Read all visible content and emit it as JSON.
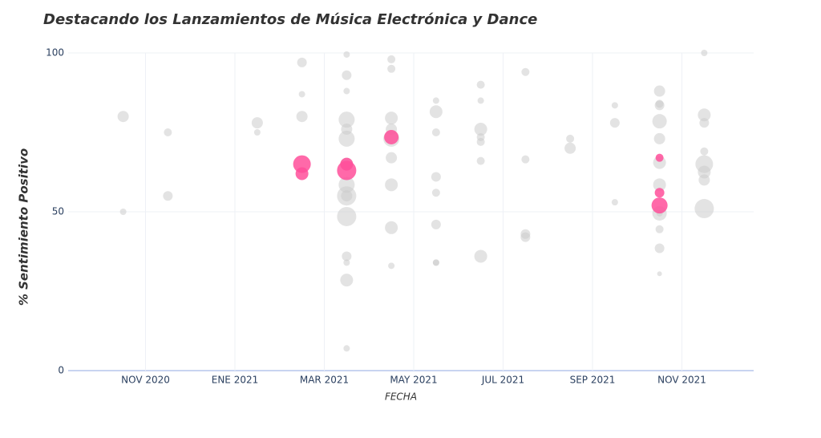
{
  "chart_data": {
    "type": "bubble",
    "title": "Destacando los Lanzamientos de Música Electrónica y Dance",
    "xlabel": "FECHA",
    "ylabel": "% Sentimiento Positivo",
    "xlim": [
      "2020-09",
      "2022-01"
    ],
    "xticks": [
      {
        "value": "2020-11",
        "label": "NOV 2020"
      },
      {
        "value": "2021-01",
        "label": "ENE 2021"
      },
      {
        "value": "2021-03",
        "label": "MAR 2021"
      },
      {
        "value": "2021-05",
        "label": "MAY 2021"
      },
      {
        "value": "2021-07",
        "label": "JUL 2021"
      },
      {
        "value": "2021-09",
        "label": "SEP 2021"
      },
      {
        "value": "2021-11",
        "label": "NOV 2021"
      }
    ],
    "ylim": [
      0,
      100
    ],
    "yticks": [
      0,
      50,
      100
    ],
    "grid": true,
    "series": [
      {
        "color": "#cccccc",
        "x": [
          "2020-10",
          "2020-10",
          "2020-11",
          "2020-11",
          "2021-01",
          "2021-01",
          "2021-02",
          "2021-02",
          "2021-02",
          "2021-03",
          "2021-03",
          "2021-03",
          "2021-03",
          "2021-03",
          "2021-03",
          "2021-03",
          "2021-03",
          "2021-03",
          "2021-04",
          "2021-03",
          "2021-03",
          "2021-03",
          "2021-03",
          "2021-03",
          "2021-03",
          "2021-04",
          "2021-04",
          "2021-04",
          "2021-04",
          "2021-04",
          "2021-04",
          "2021-04",
          "2021-04",
          "2021-05",
          "2021-05",
          "2021-05",
          "2021-05",
          "2021-05",
          "2021-05",
          "2021-06",
          "2021-06",
          "2021-05",
          "2021-05",
          "2021-06",
          "2021-06",
          "2021-06",
          "2021-06",
          "2021-06",
          "2021-07",
          "2021-07",
          "2021-07",
          "2021-07",
          "2021-08",
          "2021-08",
          "2021-09",
          "2021-09",
          "2021-09",
          "2021-10",
          "2021-10",
          "2021-10",
          "2021-10",
          "2021-10",
          "2021-10",
          "2021-10",
          "2021-10",
          "2021-10",
          "2021-10",
          "2021-10",
          "2021-11",
          "2021-11",
          "2021-11",
          "2021-11",
          "2021-11",
          "2021-11",
          "2021-11",
          "2021-11",
          "2021-10"
        ],
        "values": [
          80,
          50,
          55,
          75,
          78,
          75,
          97,
          80,
          87,
          76,
          55,
          28.5,
          36,
          7,
          93,
          48.5,
          73,
          79,
          79.5,
          58.5,
          55,
          65,
          99.5,
          88,
          34,
          33,
          95,
          76,
          73,
          67,
          58.5,
          45,
          98,
          61,
          56,
          46,
          81.5,
          85,
          75,
          90,
          76,
          34,
          34,
          72,
          85,
          66,
          73.5,
          36,
          94,
          66.5,
          43,
          42,
          73,
          70,
          83.5,
          53,
          78,
          49.5,
          65.5,
          84,
          38.5,
          88,
          83.5,
          78.5,
          44.5,
          58.5,
          73,
          49.5,
          65,
          51,
          69,
          62.5,
          80.5,
          60,
          78,
          100,
          30.5
        ],
        "sizes": [
          7,
          4,
          6,
          5,
          7,
          4,
          6,
          7,
          4,
          7,
          12,
          8,
          6,
          4,
          6,
          12,
          10,
          10,
          8,
          10,
          7,
          8,
          4,
          4,
          4,
          4,
          5,
          7,
          10,
          7,
          8,
          8,
          5,
          6,
          5,
          6,
          8,
          4,
          5,
          5,
          8,
          4,
          4,
          5,
          4,
          5,
          5,
          8,
          5,
          5,
          6,
          6,
          5,
          7,
          4,
          4,
          6,
          4,
          8,
          5,
          6,
          7,
          6,
          9,
          5,
          8,
          7,
          9,
          11,
          12,
          5,
          8,
          8,
          7,
          6,
          4,
          3
        ]
      },
      {
        "color": "#ff4f9a",
        "x": [
          "2021-02",
          "2021-02",
          "2021-03",
          "2021-03",
          "2021-04",
          "2021-10",
          "2021-10",
          "2021-10"
        ],
        "values": [
          62,
          65,
          65,
          63,
          73.5,
          56,
          67,
          52
        ],
        "sizes": [
          8,
          11,
          8,
          12,
          9,
          6,
          5,
          10
        ]
      }
    ]
  }
}
